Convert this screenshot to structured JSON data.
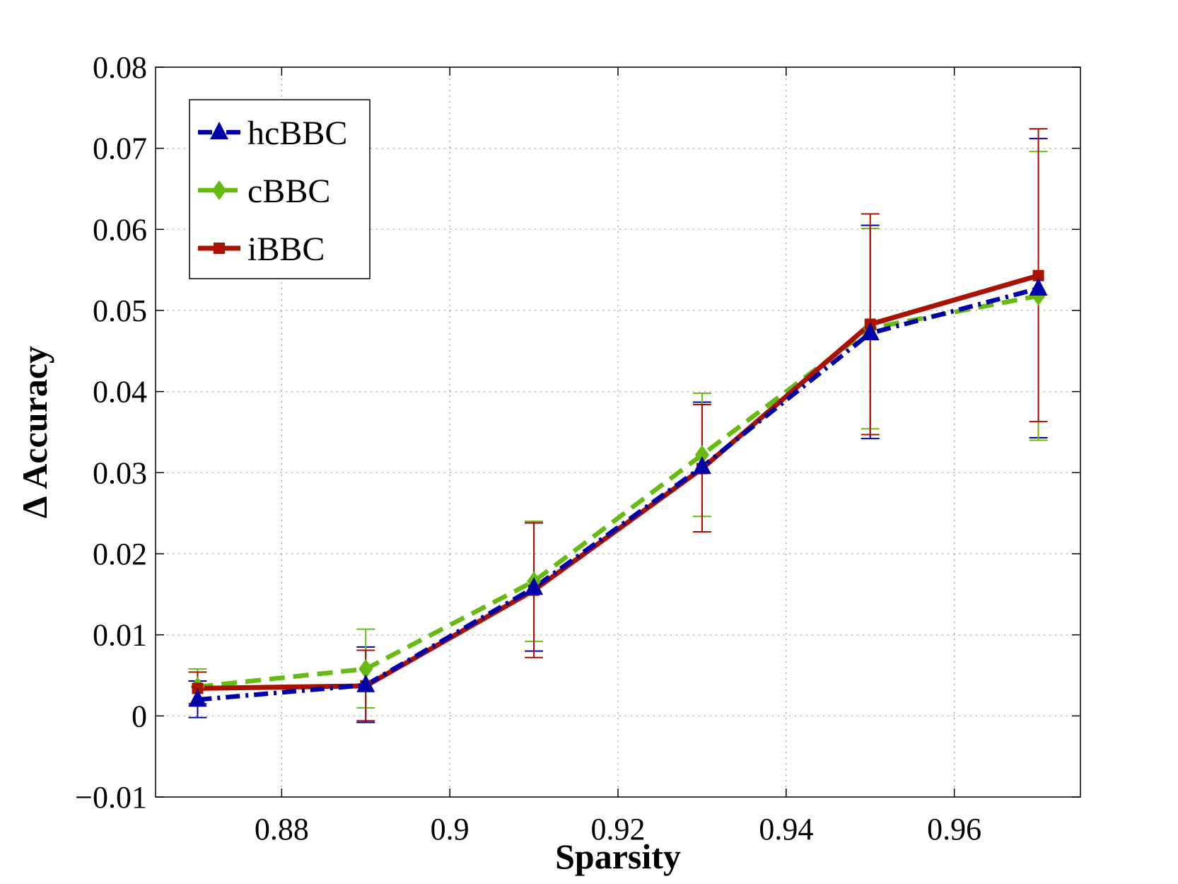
{
  "chart_data": {
    "type": "line",
    "title": "",
    "xlabel": "Sparsity",
    "ylabel": "Δ Accuracy",
    "xlim": [
      0.865,
      0.975
    ],
    "ylim": [
      -0.01,
      0.08
    ],
    "xticks": [
      0.88,
      0.9,
      0.92,
      0.94,
      0.96
    ],
    "xtick_labels": [
      "0.88",
      "0.9",
      "0.92",
      "0.94",
      "0.96"
    ],
    "yticks": [
      -0.01,
      0,
      0.01,
      0.02,
      0.03,
      0.04,
      0.05,
      0.06,
      0.07,
      0.08
    ],
    "ytick_labels": [
      "−0.01",
      "0",
      "0.01",
      "0.02",
      "0.03",
      "0.04",
      "0.05",
      "0.06",
      "0.07",
      "0.08"
    ],
    "grid": true,
    "legend_position": "top-left",
    "x": [
      0.87,
      0.89,
      0.91,
      0.93,
      0.95,
      0.97
    ],
    "series": [
      {
        "name": "hcBBC",
        "color": "#0000aa",
        "marker": "triangle",
        "line_style": "dash-dot",
        "values": [
          0.002,
          0.0038,
          0.0158,
          0.0307,
          0.0472,
          0.0527
        ],
        "err_low": [
          -0.0002,
          -0.0008,
          0.008,
          0.0227,
          0.0342,
          0.0343
        ],
        "err_high": [
          0.0043,
          0.0085,
          0.0238,
          0.0387,
          0.0605,
          0.0712
        ]
      },
      {
        "name": "cBBC",
        "color": "#66bb11",
        "marker": "diamond",
        "line_style": "dashed",
        "values": [
          0.0036,
          0.0058,
          0.0166,
          0.0322,
          0.0478,
          0.0518
        ],
        "err_low": [
          0.0013,
          0.001,
          0.0092,
          0.0246,
          0.0354,
          0.034
        ],
        "err_high": [
          0.0058,
          0.0107,
          0.024,
          0.0398,
          0.0601,
          0.0696
        ]
      },
      {
        "name": "iBBC",
        "color": "#aa1100",
        "marker": "square",
        "line_style": "solid",
        "values": [
          0.0034,
          0.0037,
          0.0155,
          0.0305,
          0.0483,
          0.0543
        ],
        "err_low": [
          0.0015,
          -0.0006,
          0.0072,
          0.0227,
          0.0347,
          0.0363
        ],
        "err_high": [
          0.0054,
          0.0081,
          0.0238,
          0.0384,
          0.0619,
          0.0724
        ]
      }
    ]
  }
}
